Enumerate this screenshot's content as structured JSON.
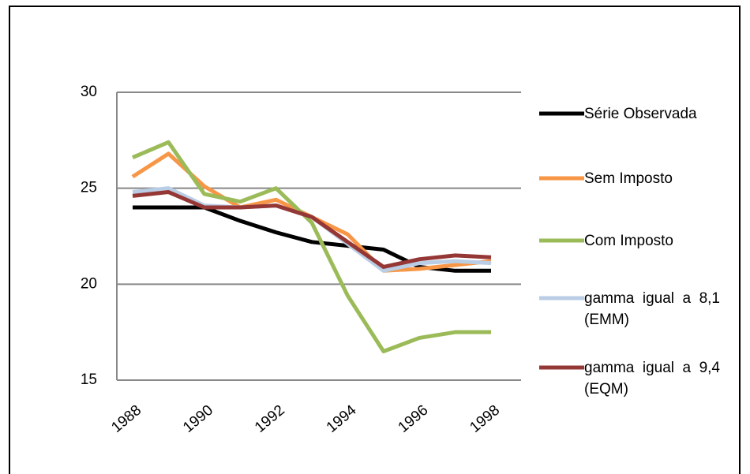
{
  "chart_data": {
    "type": "line",
    "categories": [
      "1988",
      null,
      "1990",
      null,
      "1992",
      null,
      "1994",
      null,
      "1996",
      null,
      "1998"
    ],
    "ylim": [
      15,
      30
    ],
    "yticks": [
      15,
      20,
      25,
      30
    ],
    "grid": true,
    "series": [
      {
        "name": "Série Observada",
        "color": "#000000",
        "values": [
          24.0,
          24.0,
          24.0,
          23.3,
          22.7,
          22.2,
          22.0,
          21.8,
          20.9,
          20.7,
          20.7
        ]
      },
      {
        "name": "Sem Imposto",
        "color": "#f79646",
        "values": [
          25.6,
          26.8,
          25.1,
          24.0,
          24.4,
          23.5,
          22.6,
          20.7,
          20.8,
          21.0,
          21.2
        ]
      },
      {
        "name": "Com Imposto",
        "color": "#9bbb59",
        "values": [
          26.6,
          27.4,
          24.7,
          24.3,
          25.0,
          23.2,
          19.4,
          16.5,
          17.2,
          17.5,
          17.5
        ]
      },
      {
        "name": "gamma igual a 8,1 (EMM)",
        "color": "#b9cde5",
        "values": [
          24.8,
          25.0,
          24.1,
          24.0,
          24.1,
          23.5,
          22.1,
          20.7,
          21.1,
          21.2,
          21.1
        ]
      },
      {
        "name": "gamma igual a 9,4 (EQM)",
        "color": "#953735",
        "values": [
          24.6,
          24.8,
          24.0,
          24.0,
          24.1,
          23.5,
          22.2,
          20.9,
          21.3,
          21.5,
          21.4
        ]
      }
    ]
  }
}
